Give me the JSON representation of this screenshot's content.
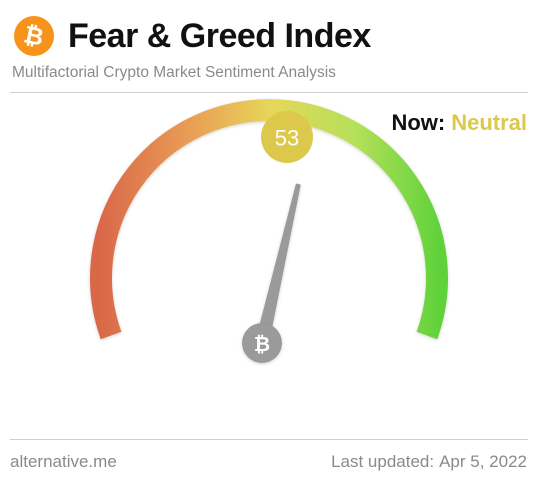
{
  "header": {
    "logo_glyph": "₿",
    "title": "Fear & Greed Index",
    "subtitle": "Multifactorial Crypto Market Sentiment Analysis"
  },
  "status": {
    "now_label": "Now:",
    "classification": "Neutral"
  },
  "gauge": {
    "value": 53,
    "value_text": "53",
    "min": 0,
    "max": 100,
    "center_glyph": "₿"
  },
  "footer": {
    "source": "alternative.me",
    "updated_label": "Last updated:",
    "updated_date": "Apr 5, 2022"
  },
  "colors": {
    "brand_orange": "#f7931a",
    "neutral_yellow": "#dcc84a",
    "needle_gray": "#9a9a9a",
    "fear_red": "#d9684a",
    "greed_green": "#5fd23a"
  }
}
